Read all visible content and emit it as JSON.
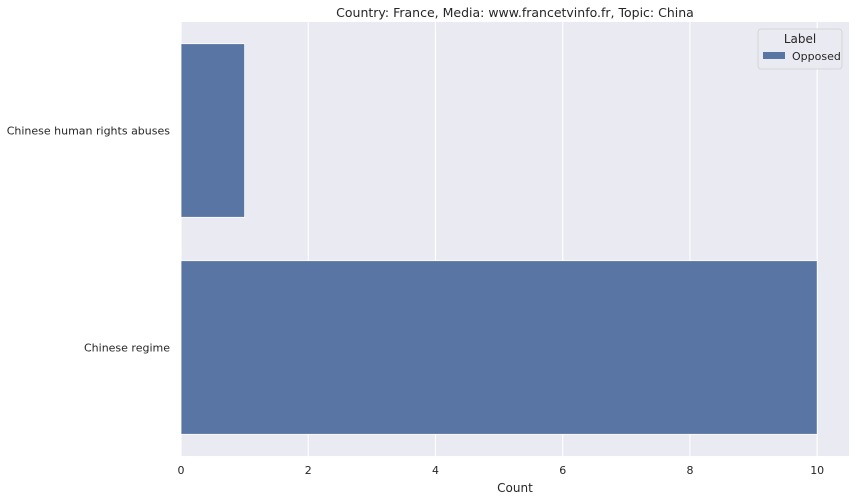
{
  "chart_data": {
    "type": "bar",
    "orientation": "horizontal",
    "title": "Country: France, Media: www.francetvinfo.fr, Topic: China",
    "xlabel": "Count",
    "ylabel": "",
    "categories": [
      "Chinese human rights abuses",
      "Chinese regime"
    ],
    "series": [
      {
        "name": "Opposed",
        "values": [
          1,
          10
        ],
        "color": "#5875a4"
      }
    ],
    "xlim": [
      0,
      10.5
    ],
    "xticks": [
      0,
      2,
      4,
      6,
      8,
      10
    ],
    "grid": true,
    "legend": {
      "title": "Label",
      "position": "top-right"
    },
    "background": "#eaeaf2"
  }
}
